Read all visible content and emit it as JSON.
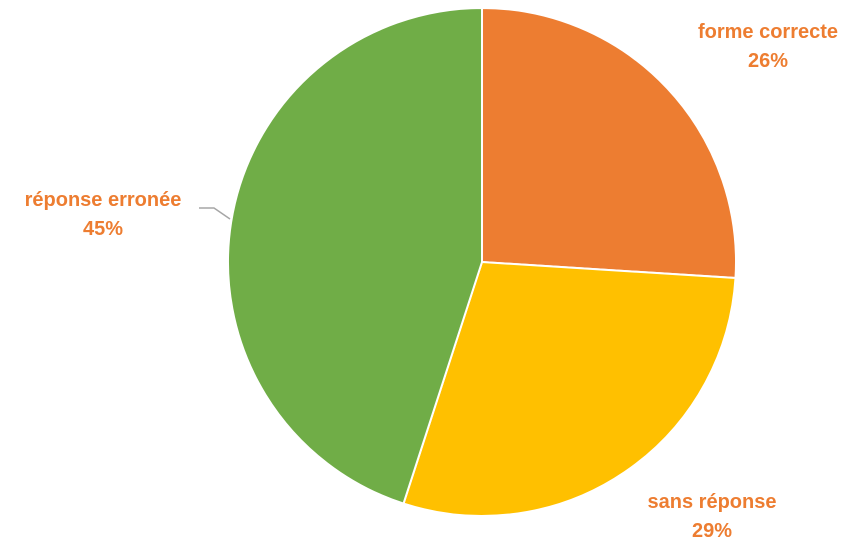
{
  "chart_data": {
    "type": "pie",
    "slices": [
      {
        "label": "forme correcte",
        "value": 26,
        "value_label": "26%",
        "color": "#ED7D31"
      },
      {
        "label": "sans réponse",
        "value": 29,
        "value_label": "29%",
        "color": "#FFC000"
      },
      {
        "label": "réponse erronée",
        "value": 45,
        "value_label": "45%",
        "color": "#70AD47"
      }
    ],
    "label_color": "#ED7D31",
    "start_angle": "12 o'clock",
    "direction": "clockwise",
    "legend": "none"
  }
}
